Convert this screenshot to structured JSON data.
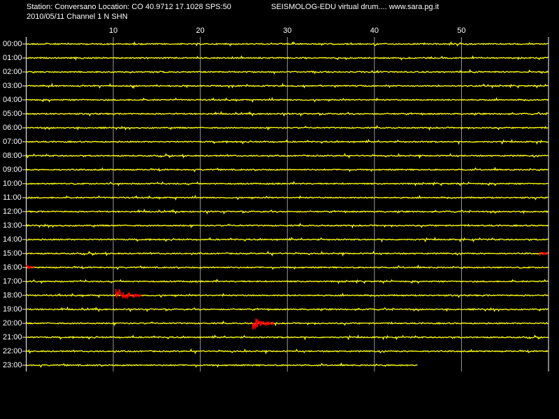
{
  "chart_data": {
    "type": "helicorder",
    "title": "Station: Conversano Location: CO 40.9712 17.1028 SPS:50",
    "subtitle": "2010/05/11  Channel 1 N SHN",
    "annotation": "SEISMOLOG-EDU virtual drum.... www.sara.pg.it",
    "categories": [
      "00:00",
      "01:00",
      "02:00",
      "03:00",
      "04:00",
      "05:00",
      "06:00",
      "07:00",
      "08:00",
      "09:00",
      "10:00",
      "11:00",
      "12:00",
      "13:00",
      "14:00",
      "15:00",
      "16:00",
      "17:00",
      "18:00",
      "19:00",
      "20:00",
      "21:00",
      "22:00",
      "23:00"
    ],
    "xlim": [
      0,
      60
    ],
    "xticks": [
      10,
      20,
      30,
      40,
      50
    ],
    "grid": true,
    "trace_color": "#ffff00",
    "event_color": "#ff0000",
    "last_trace_end": 45,
    "events": [
      {
        "row": 15,
        "start": 59,
        "end": 60
      },
      {
        "row": 16,
        "start": 0,
        "end": 1
      },
      {
        "row": 18,
        "start": 10.3,
        "end": 13.3
      },
      {
        "row": 20,
        "start": 26,
        "end": 28.5
      }
    ]
  }
}
